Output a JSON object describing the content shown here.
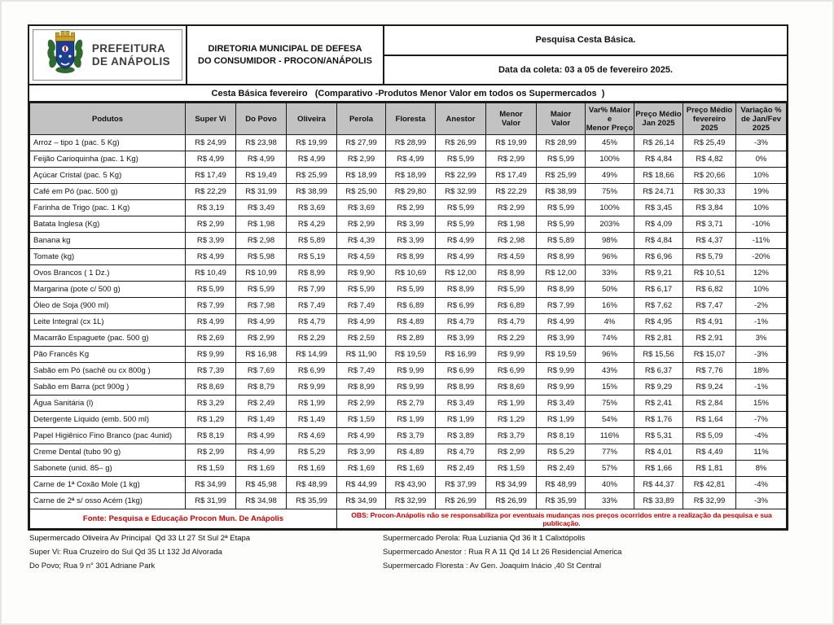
{
  "logo": {
    "line1": "PREFEITURA",
    "line2": "DE ANÁPOLIS"
  },
  "header": {
    "department": "DIRETORIA MUNICIPAL DE DEFESA\nDO CONSUMIDOR - PROCON/ANÁPOLIS",
    "survey_title": "Pesquisa Cesta Básica.",
    "collection_date": "Data da coleta: 03 a 05 de fevereiro  2025."
  },
  "title_bar": "Cesta Básica fevereiro   (Comparativo -Produtos Menor Valor em todos os Supermercados  )",
  "table": {
    "columns": [
      "Podutos",
      "Super Vi",
      "Do Povo",
      "Oliveira",
      "Perola",
      "Floresta",
      "Anestor",
      "Menor\nValor",
      "Maior\nValor",
      "Var% Maior e\nMenor Preço",
      "Preço  Médio\nJan 2025",
      "Preço Médio\nfevereiro\n2025",
      "Variação %\nde Jan/Fev\n2025"
    ],
    "rows": [
      {
        "product": "Arroz – tipo 1 (pac. 5 Kg)",
        "values": [
          "R$ 24,99",
          "R$ 23,98",
          "R$ 19,99",
          "R$ 27,99",
          "R$ 28,99",
          "R$ 26,99",
          "R$ 19,99",
          "R$ 28,99",
          "45%",
          "R$ 26,14",
          "R$ 25,49",
          "-3%"
        ]
      },
      {
        "product": "Feijão Carioquinha (pac. 1 Kg)",
        "values": [
          "R$ 4,99",
          "R$ 4,99",
          "R$ 4,99",
          "R$ 2,99",
          "R$ 4,99",
          "R$ 5,99",
          "R$ 2,99",
          "R$ 5,99",
          "100%",
          "R$ 4,84",
          "R$ 4,82",
          "0%"
        ]
      },
      {
        "product": "Açúcar Cristal (pac. 5 Kg)",
        "values": [
          "R$ 17,49",
          "R$ 19,49",
          "R$ 25,99",
          "R$ 18,99",
          "R$ 18,99",
          "R$ 22,99",
          "R$ 17,49",
          "R$ 25,99",
          "49%",
          "R$ 18,66",
          "R$ 20,66",
          "10%"
        ]
      },
      {
        "product": "Café em Pó  (pac. 500 g)",
        "values": [
          "R$ 22,29",
          "R$ 31,99",
          "R$ 38,99",
          "R$ 25,90",
          "R$ 29,80",
          "R$ 32,99",
          "R$ 22,29",
          "R$ 38,99",
          "75%",
          "R$ 24,71",
          "R$ 30,33",
          "19%"
        ]
      },
      {
        "product": "Farinha de Trigo (pac. 1 Kg)",
        "values": [
          "R$ 3,19",
          "R$ 3,49",
          "R$ 3,69",
          "R$ 3,69",
          "R$ 2,99",
          "R$ 5,99",
          "R$ 2,99",
          "R$ 5,99",
          "100%",
          "R$ 3,45",
          "R$ 3,84",
          "10%"
        ]
      },
      {
        "product": "Batata Inglesa  (Kg)",
        "values": [
          "R$ 2,99",
          "R$ 1,98",
          "R$ 4,29",
          "R$ 2,99",
          "R$ 3,99",
          "R$ 5,99",
          "R$ 1,98",
          "R$ 5,99",
          "203%",
          "R$ 4,09",
          "R$ 3,71",
          "-10%"
        ]
      },
      {
        "product": "Banana kg",
        "values": [
          "R$ 3,99",
          "R$ 2,98",
          "R$ 5,89",
          "R$ 4,39",
          "R$ 3,99",
          "R$ 4,99",
          "R$ 2,98",
          "R$ 5,89",
          "98%",
          "R$ 4,84",
          "R$ 4,37",
          "-11%"
        ]
      },
      {
        "product": "Tomate (kg)",
        "values": [
          "R$ 4,99",
          "R$ 5,98",
          "R$ 5,19",
          "R$ 4,59",
          "R$ 8,99",
          "R$ 4,99",
          "R$ 4,59",
          "R$ 8,99",
          "96%",
          "R$ 6,96",
          "R$ 5,79",
          "-20%"
        ]
      },
      {
        "product": "Ovos Brancos ( 1 Dz.)",
        "values": [
          "R$ 10,49",
          "R$ 10,99",
          "R$ 8,99",
          "R$ 9,90",
          "R$ 10,69",
          "R$ 12,00",
          "R$ 8,99",
          "R$ 12,00",
          "33%",
          "R$ 9,21",
          "R$ 10,51",
          "12%"
        ]
      },
      {
        "product": "Margarina (pote c/ 500 g)",
        "values": [
          "R$ 5,99",
          "R$ 5,99",
          "R$ 7,99",
          "R$ 5,99",
          "R$ 5,99",
          "R$ 8,99",
          "R$ 5,99",
          "R$ 8,99",
          "50%",
          "R$ 6,17",
          "R$ 6,82",
          "10%"
        ]
      },
      {
        "product": "Óleo de Soja (900 ml)",
        "values": [
          "R$ 7,99",
          "R$ 7,98",
          "R$ 7,49",
          "R$ 7,49",
          "R$ 6,89",
          "R$ 6,99",
          "R$ 6,89",
          "R$ 7,99",
          "16%",
          "R$ 7,62",
          "R$ 7,47",
          "-2%"
        ]
      },
      {
        "product": "Leite Integral (cx 1L)",
        "values": [
          "R$ 4,99",
          "R$ 4,99",
          "R$ 4,79",
          "R$ 4,99",
          "R$ 4,89",
          "R$ 4,79",
          "R$ 4,79",
          "R$ 4,99",
          "4%",
          "R$ 4,95",
          "R$ 4,91",
          "-1%"
        ]
      },
      {
        "product": "Macarrão Espaguete  (pac. 500 g)",
        "values": [
          "R$ 2,69",
          "R$ 2,99",
          "R$ 2,29",
          "R$ 2,59",
          "R$ 2,89",
          "R$ 3,99",
          "R$ 2,29",
          "R$ 3,99",
          "74%",
          "R$ 2,81",
          "R$ 2,91",
          "3%"
        ]
      },
      {
        "product": "Pão Francês Kg",
        "values": [
          "R$ 9,99",
          "R$ 16,98",
          "R$ 14,99",
          "R$ 11,90",
          "R$ 19,59",
          "R$ 16,99",
          "R$ 9,99",
          "R$ 19,59",
          "96%",
          "R$ 15,56",
          "R$ 15,07",
          "-3%"
        ]
      },
      {
        "product": "Sabão em Pó (sachê ou cx 800g )",
        "values": [
          "R$ 7,39",
          "R$ 7,69",
          "R$ 6,99",
          "R$ 7,49",
          "R$ 9,99",
          "R$ 6,99",
          "R$ 6,99",
          "R$ 9,99",
          "43%",
          "R$ 6,37",
          "R$ 7,76",
          "18%"
        ]
      },
      {
        "product": "Sabão em Barra (pct 900g )",
        "values": [
          "R$ 8,69",
          "R$ 8,79",
          "R$ 9,99",
          "R$ 8,99",
          "R$ 9,99",
          "R$ 8,99",
          "R$ 8,69",
          "R$ 9,99",
          "15%",
          "R$ 9,29",
          "R$ 9,24",
          "-1%"
        ]
      },
      {
        "product": "Água Sanitária (l)",
        "values": [
          "R$ 3,29",
          "R$ 2,49",
          "R$ 1,99",
          "R$ 2,99",
          "R$ 2,79",
          "R$ 3,49",
          "R$ 1,99",
          "R$ 3,49",
          "75%",
          "R$ 2,41",
          "R$ 2,84",
          "15%"
        ]
      },
      {
        "product": "Detergente Líquido (emb. 500 ml)",
        "values": [
          "R$ 1,29",
          "R$ 1,49",
          "R$ 1,49",
          "R$ 1,59",
          "R$ 1,99",
          "R$ 1,99",
          "R$ 1,29",
          "R$ 1,99",
          "54%",
          "R$ 1,76",
          "R$ 1,64",
          "-7%"
        ]
      },
      {
        "product": "Papel Higiênico Fino Branco (pac 4unid)",
        "values": [
          "R$ 8,19",
          "R$ 4,99",
          "R$ 4,69",
          "R$ 4,99",
          "R$ 3,79",
          "R$ 3,89",
          "R$ 3,79",
          "R$ 8,19",
          "116%",
          "R$ 5,31",
          "R$ 5,09",
          "-4%"
        ]
      },
      {
        "product": "Creme Dental (tubo 90 g)",
        "values": [
          "R$ 2,99",
          "R$ 4,99",
          "R$ 5,29",
          "R$ 3,99",
          "R$ 4,89",
          "R$ 4,79",
          "R$ 2,99",
          "R$ 5,29",
          "77%",
          "R$ 4,01",
          "R$ 4,49",
          "11%"
        ]
      },
      {
        "product": "Sabonete (unid. 85– g)",
        "values": [
          "R$ 1,59",
          "R$ 1,69",
          "R$ 1,69",
          "R$ 1,69",
          "R$ 1,69",
          "R$ 2,49",
          "R$ 1,59",
          "R$ 2,49",
          "57%",
          "R$ 1,66",
          "R$ 1,81",
          "8%"
        ]
      },
      {
        "product": "Carne de 1ª Coxão Mole (1 kg)",
        "values": [
          "R$ 34,99",
          "R$ 45,98",
          "R$ 48,99",
          "R$ 44,99",
          "R$ 43,90",
          "R$ 37,99",
          "R$ 34,99",
          "R$ 48,99",
          "40%",
          "R$ 44,37",
          "R$ 42,81",
          "-4%"
        ]
      },
      {
        "product": "Carne de 2ª s/ osso Acém (1kg)",
        "values": [
          "R$ 31,99",
          "R$ 34,98",
          "R$ 35,99",
          "R$ 34,99",
          "R$ 32,99",
          "R$ 26,99",
          "R$ 26,99",
          "R$ 35,99",
          "33%",
          "R$ 33,89",
          "R$ 32,99",
          "-3%"
        ]
      }
    ]
  },
  "footer": {
    "fonte": "Fonte: Pesquisa e Educação Procon Mun. De Anápolis",
    "obs": "OBS: Procon-Anápolis  não se responsabiliza por eventuais mudanças nos preços ocorridos entre a realização da pesquisa e sua publicação."
  },
  "addresses_left": [
    "Supermercado Oliveira Av Principal  Qd 33 Lt 27 St Sul 2ª Etapa",
    "Super Vi: Rua Cruzeiro do Sul Qd 35 Lt 132 Jd Alvorada",
    "Do Povo; Rua 9 n° 301 Adriane Park"
  ],
  "addresses_right": [
    "Supermercado Perola: Rua Luziania Qd 36 lt 1 Calixtópolis",
    "Supermercado Anestor : Rua R A 11 Qd 14 Lt 26 Residencial America",
    "Supermercado Floresta : Av Gen. Joaquim Inácio ,40 St Central"
  ],
  "colors": {
    "accent_red": "#cc0000",
    "header_gray": "#c2c2c2",
    "border_black": "#1a1a1a"
  }
}
